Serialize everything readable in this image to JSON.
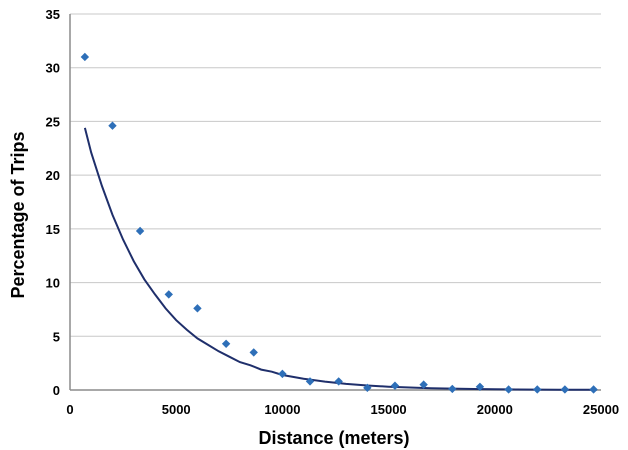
{
  "chart_data": {
    "type": "scatter",
    "title": "",
    "xlabel": "Distance (meters)",
    "ylabel": "Percentage of Trips",
    "xlim": [
      0,
      25000
    ],
    "ylim": [
      0,
      35
    ],
    "x_ticks": [
      0,
      5000,
      10000,
      15000,
      20000,
      25000
    ],
    "y_ticks": [
      0,
      5,
      10,
      15,
      20,
      25,
      30,
      35
    ],
    "grid": true,
    "legend": "none",
    "series": [
      {
        "kind": "points",
        "marker": "diamond",
        "color": "#2e6fb8",
        "x": [
          700,
          2000,
          3300,
          4650,
          6000,
          7350,
          8650,
          10000,
          11300,
          12650,
          14000,
          15300,
          16650,
          18000,
          19300,
          20650,
          22000,
          23300,
          24650
        ],
        "y": [
          31.0,
          24.6,
          14.8,
          8.9,
          7.6,
          4.3,
          3.5,
          1.5,
          0.8,
          0.8,
          0.2,
          0.4,
          0.5,
          0.1,
          0.3,
          0.05,
          0.05,
          0.05,
          0.05
        ]
      },
      {
        "kind": "fit-curve",
        "curve": "exponential",
        "color": "#1f2f6b",
        "x": [
          700,
          1000,
          1500,
          2000,
          2500,
          3000,
          3500,
          4000,
          4500,
          5000,
          5500,
          6000,
          6500,
          7000,
          7500,
          8000,
          8500,
          9000,
          9500,
          10000,
          11000,
          12000,
          13000,
          14000,
          15000,
          16000,
          17000,
          18000,
          19000,
          20000,
          21000,
          22000,
          23000,
          24000,
          24800
        ],
        "y": [
          24.4,
          22.1,
          19.0,
          16.3,
          14.0,
          12.0,
          10.3,
          8.9,
          7.6,
          6.5,
          5.6,
          4.8,
          4.2,
          3.6,
          3.1,
          2.6,
          2.3,
          1.9,
          1.7,
          1.4,
          1.05,
          0.78,
          0.57,
          0.42,
          0.31,
          0.23,
          0.17,
          0.13,
          0.09,
          0.07,
          0.05,
          0.04,
          0.03,
          0.02,
          0.02
        ]
      }
    ]
  }
}
